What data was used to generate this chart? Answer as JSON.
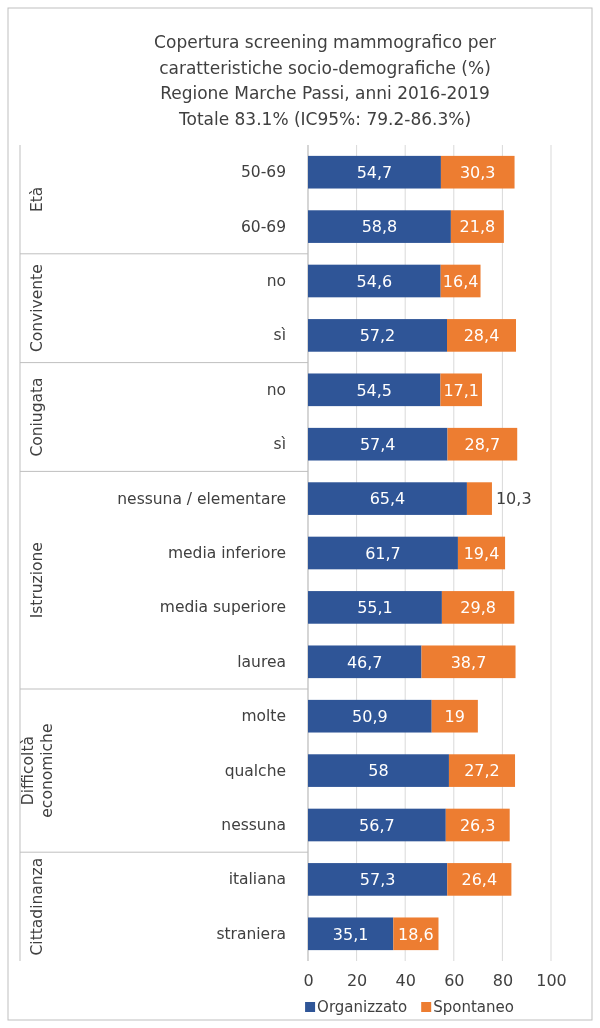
{
  "chart_data": {
    "type": "bar",
    "orientation": "horizontal",
    "stacked": true,
    "title": "Copertura screening mammografico per\ncaratteristiche socio-demografiche (%)\nRegione Marche Passi, anni 2016-2019\nTotale 83.1% (IC95%: 79.2-86.3%)",
    "categories": [
      "50-69",
      "60-69",
      "no",
      "sì",
      "no",
      "sì",
      "nessuna / elementare",
      "media inferiore",
      "media superiore",
      "laurea",
      "molte",
      "qualche",
      "nessuna",
      "italiana",
      "straniera"
    ],
    "series": [
      {
        "name": "Organizzato",
        "color": "#2f5597",
        "values": [
          54.7,
          58.8,
          54.6,
          57.2,
          54.5,
          57.4,
          65.4,
          61.7,
          55.1,
          46.7,
          50.9,
          58,
          56.7,
          57.3,
          35.1
        ],
        "value_labels": [
          "54,7",
          "58,8",
          "54,6",
          "57,2",
          "54,5",
          "57,4",
          "65,4",
          "61,7",
          "55,1",
          "46,7",
          "50,9",
          "58",
          "56,7",
          "57,3",
          "35,1"
        ]
      },
      {
        "name": "Spontaneo",
        "color": "#ed7d31",
        "values": [
          30.3,
          21.8,
          16.4,
          28.4,
          17.1,
          28.7,
          10.3,
          19.4,
          29.8,
          38.7,
          19,
          27.2,
          26.3,
          26.4,
          18.6
        ],
        "value_labels": [
          "30,3",
          "21,8",
          "16,4",
          "28,4",
          "17,1",
          "28,7",
          "10,3",
          "19,4",
          "29,8",
          "38,7",
          "19",
          "27,2",
          "26,3",
          "26,4",
          "18,6"
        ]
      }
    ],
    "xlim": [
      0,
      100
    ],
    "xticks": [
      0,
      20,
      40,
      60,
      80,
      100
    ],
    "grid": "x",
    "legend": "bottom",
    "annotations": [
      "Età",
      "Convivente",
      "Coniugata",
      "Istruzione",
      "Difficoltà economiche",
      "Cittadinanza"
    ]
  }
}
